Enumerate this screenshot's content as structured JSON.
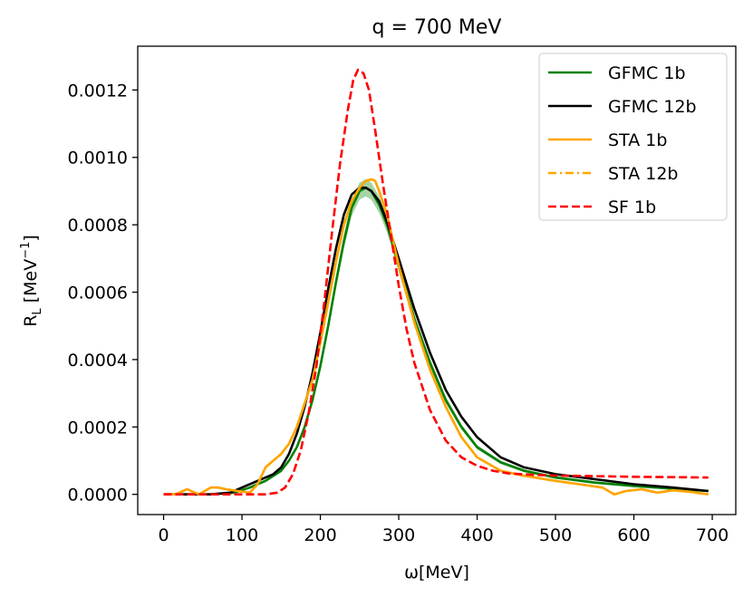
{
  "chart_data": {
    "type": "line",
    "title": "q = 700 MeV",
    "xlabel": "ω[MeV]",
    "ylabel": "R_L [MeV^-1]",
    "xlim": [
      -33,
      730
    ],
    "ylim": [
      -6e-05,
      0.00133
    ],
    "xticks": [
      0,
      100,
      200,
      300,
      400,
      500,
      600,
      700
    ],
    "xtick_labels": [
      "0",
      "100",
      "200",
      "300",
      "400",
      "500",
      "600",
      "700"
    ],
    "yticks": [
      0.0,
      0.0002,
      0.0004,
      0.0006,
      0.0008,
      0.001,
      0.0012
    ],
    "ytick_labels": [
      "0.0000",
      "0.0002",
      "0.0004",
      "0.0006",
      "0.0008",
      "0.0010",
      "0.0012"
    ],
    "grid": false,
    "legend_position": "top-right",
    "series": [
      {
        "name": "GFMC 1b",
        "color": "#008000",
        "dash": "solid",
        "band": true,
        "x": [
          0,
          60,
          90,
          110,
          130,
          150,
          160,
          170,
          180,
          190,
          200,
          210,
          220,
          230,
          240,
          250,
          258,
          265,
          275,
          285,
          300,
          320,
          340,
          360,
          380,
          400,
          430,
          460,
          500,
          550,
          600,
          650,
          695
        ],
        "y": [
          0.0,
          0.0,
          5e-06,
          2e-05,
          4e-05,
          7e-05,
          0.0001,
          0.00014,
          0.0002,
          0.00028,
          0.00038,
          0.0005,
          0.00063,
          0.00075,
          0.00085,
          0.0009,
          0.00091,
          0.0009,
          0.00086,
          0.0008,
          0.00068,
          0.00052,
          0.00039,
          0.00028,
          0.0002,
          0.00014,
          9.5e-05,
          7e-05,
          5e-05,
          3.5e-05,
          2.5e-05,
          1.7e-05,
          1e-05
        ]
      },
      {
        "name": "GFMC 12b",
        "color": "#000000",
        "dash": "solid",
        "band": false,
        "x": [
          0,
          60,
          85,
          100,
          120,
          140,
          150,
          160,
          170,
          180,
          190,
          200,
          210,
          220,
          230,
          240,
          250,
          258,
          265,
          275,
          285,
          300,
          320,
          340,
          360,
          380,
          400,
          430,
          460,
          500,
          550,
          600,
          650,
          695
        ],
        "y": [
          0.0,
          0.0,
          5e-06,
          2e-05,
          4e-05,
          6e-05,
          8e-05,
          0.00012,
          0.00018,
          0.00026,
          0.00036,
          0.00048,
          0.00061,
          0.00073,
          0.00083,
          0.00089,
          0.00091,
          0.00091,
          0.0009,
          0.00087,
          0.00081,
          0.0007,
          0.00055,
          0.00042,
          0.00031,
          0.00023,
          0.00017,
          0.00011,
          8e-05,
          6e-05,
          4.5e-05,
          3e-05,
          2e-05,
          1e-05
        ]
      },
      {
        "name": "STA 1b",
        "color": "#ffa500",
        "dash": "solid",
        "band": false,
        "x": [
          0,
          15,
          30,
          45,
          60,
          70,
          80,
          95,
          110,
          120,
          130,
          140,
          150,
          160,
          170,
          180,
          190,
          200,
          210,
          220,
          230,
          240,
          250,
          258,
          265,
          270,
          275,
          285,
          300,
          320,
          340,
          360,
          380,
          400,
          430,
          460,
          500,
          530,
          560,
          575,
          590,
          610,
          630,
          650,
          670,
          695
        ],
        "y": [
          0.0,
          0.0,
          1.5e-05,
          0.0,
          2e-05,
          2e-05,
          1.5e-05,
          1e-05,
          5e-06,
          3e-05,
          8e-05,
          0.0001,
          0.00012,
          0.00015,
          0.0002,
          0.00027,
          0.00034,
          0.00045,
          0.00057,
          0.00069,
          0.0008,
          0.00087,
          0.00091,
          0.00093,
          0.000935,
          0.00093,
          0.0009,
          0.00083,
          0.00068,
          0.00051,
          0.00037,
          0.00026,
          0.00017,
          0.00011,
          7e-05,
          5.5e-05,
          4e-05,
          3e-05,
          2e-05,
          0.0,
          1e-05,
          1.5e-05,
          5e-06,
          1.2e-05,
          8e-06,
          0.0
        ]
      },
      {
        "name": "STA 12b",
        "color": "#ffa500",
        "dash": "dashdot",
        "band": false,
        "x": [
          0,
          15,
          30,
          45,
          60,
          70,
          80,
          95,
          110,
          120,
          130,
          140,
          150,
          160,
          170,
          180,
          190,
          200,
          210,
          220,
          230,
          240,
          250,
          258,
          265,
          270,
          275,
          285,
          300,
          320,
          340,
          360,
          380,
          400,
          430,
          460,
          500,
          530,
          560,
          575,
          590,
          610,
          630,
          650,
          670,
          695
        ],
        "y": [
          0.0,
          0.0,
          1.5e-05,
          0.0,
          2e-05,
          2e-05,
          1.5e-05,
          1e-05,
          5e-06,
          3e-05,
          8e-05,
          0.0001,
          0.00012,
          0.00015,
          0.0002,
          0.00027,
          0.00034,
          0.00045,
          0.00057,
          0.00069,
          0.0008,
          0.00087,
          0.00091,
          0.00093,
          0.000935,
          0.00093,
          0.0009,
          0.00083,
          0.00068,
          0.00051,
          0.00037,
          0.00026,
          0.00017,
          0.00011,
          7e-05,
          5.5e-05,
          4e-05,
          3e-05,
          2e-05,
          0.0,
          1e-05,
          1.5e-05,
          5e-06,
          1.2e-05,
          8e-06,
          0.0
        ]
      },
      {
        "name": "SF 1b",
        "color": "#ff0000",
        "dash": "dashed",
        "band": false,
        "x": [
          0,
          130,
          145,
          155,
          165,
          175,
          185,
          195,
          205,
          215,
          225,
          235,
          242,
          248,
          255,
          262,
          270,
          280,
          290,
          300,
          310,
          320,
          340,
          360,
          380,
          400,
          420,
          440,
          470,
          500,
          550,
          600,
          650,
          695
        ],
        "y": [
          0.0,
          0.0,
          5e-06,
          2e-05,
          6e-05,
          0.00013,
          0.00024,
          0.00038,
          0.00057,
          0.00078,
          0.00098,
          0.00114,
          0.00123,
          0.00126,
          0.00125,
          0.0012,
          0.00108,
          0.00092,
          0.00077,
          0.00062,
          0.00049,
          0.00039,
          0.00025,
          0.00016,
          0.00011,
          8.5e-05,
          7e-05,
          6.2e-05,
          5.8e-05,
          5.6e-05,
          5.4e-05,
          5.2e-05,
          5.1e-05,
          5e-05
        ]
      }
    ]
  }
}
